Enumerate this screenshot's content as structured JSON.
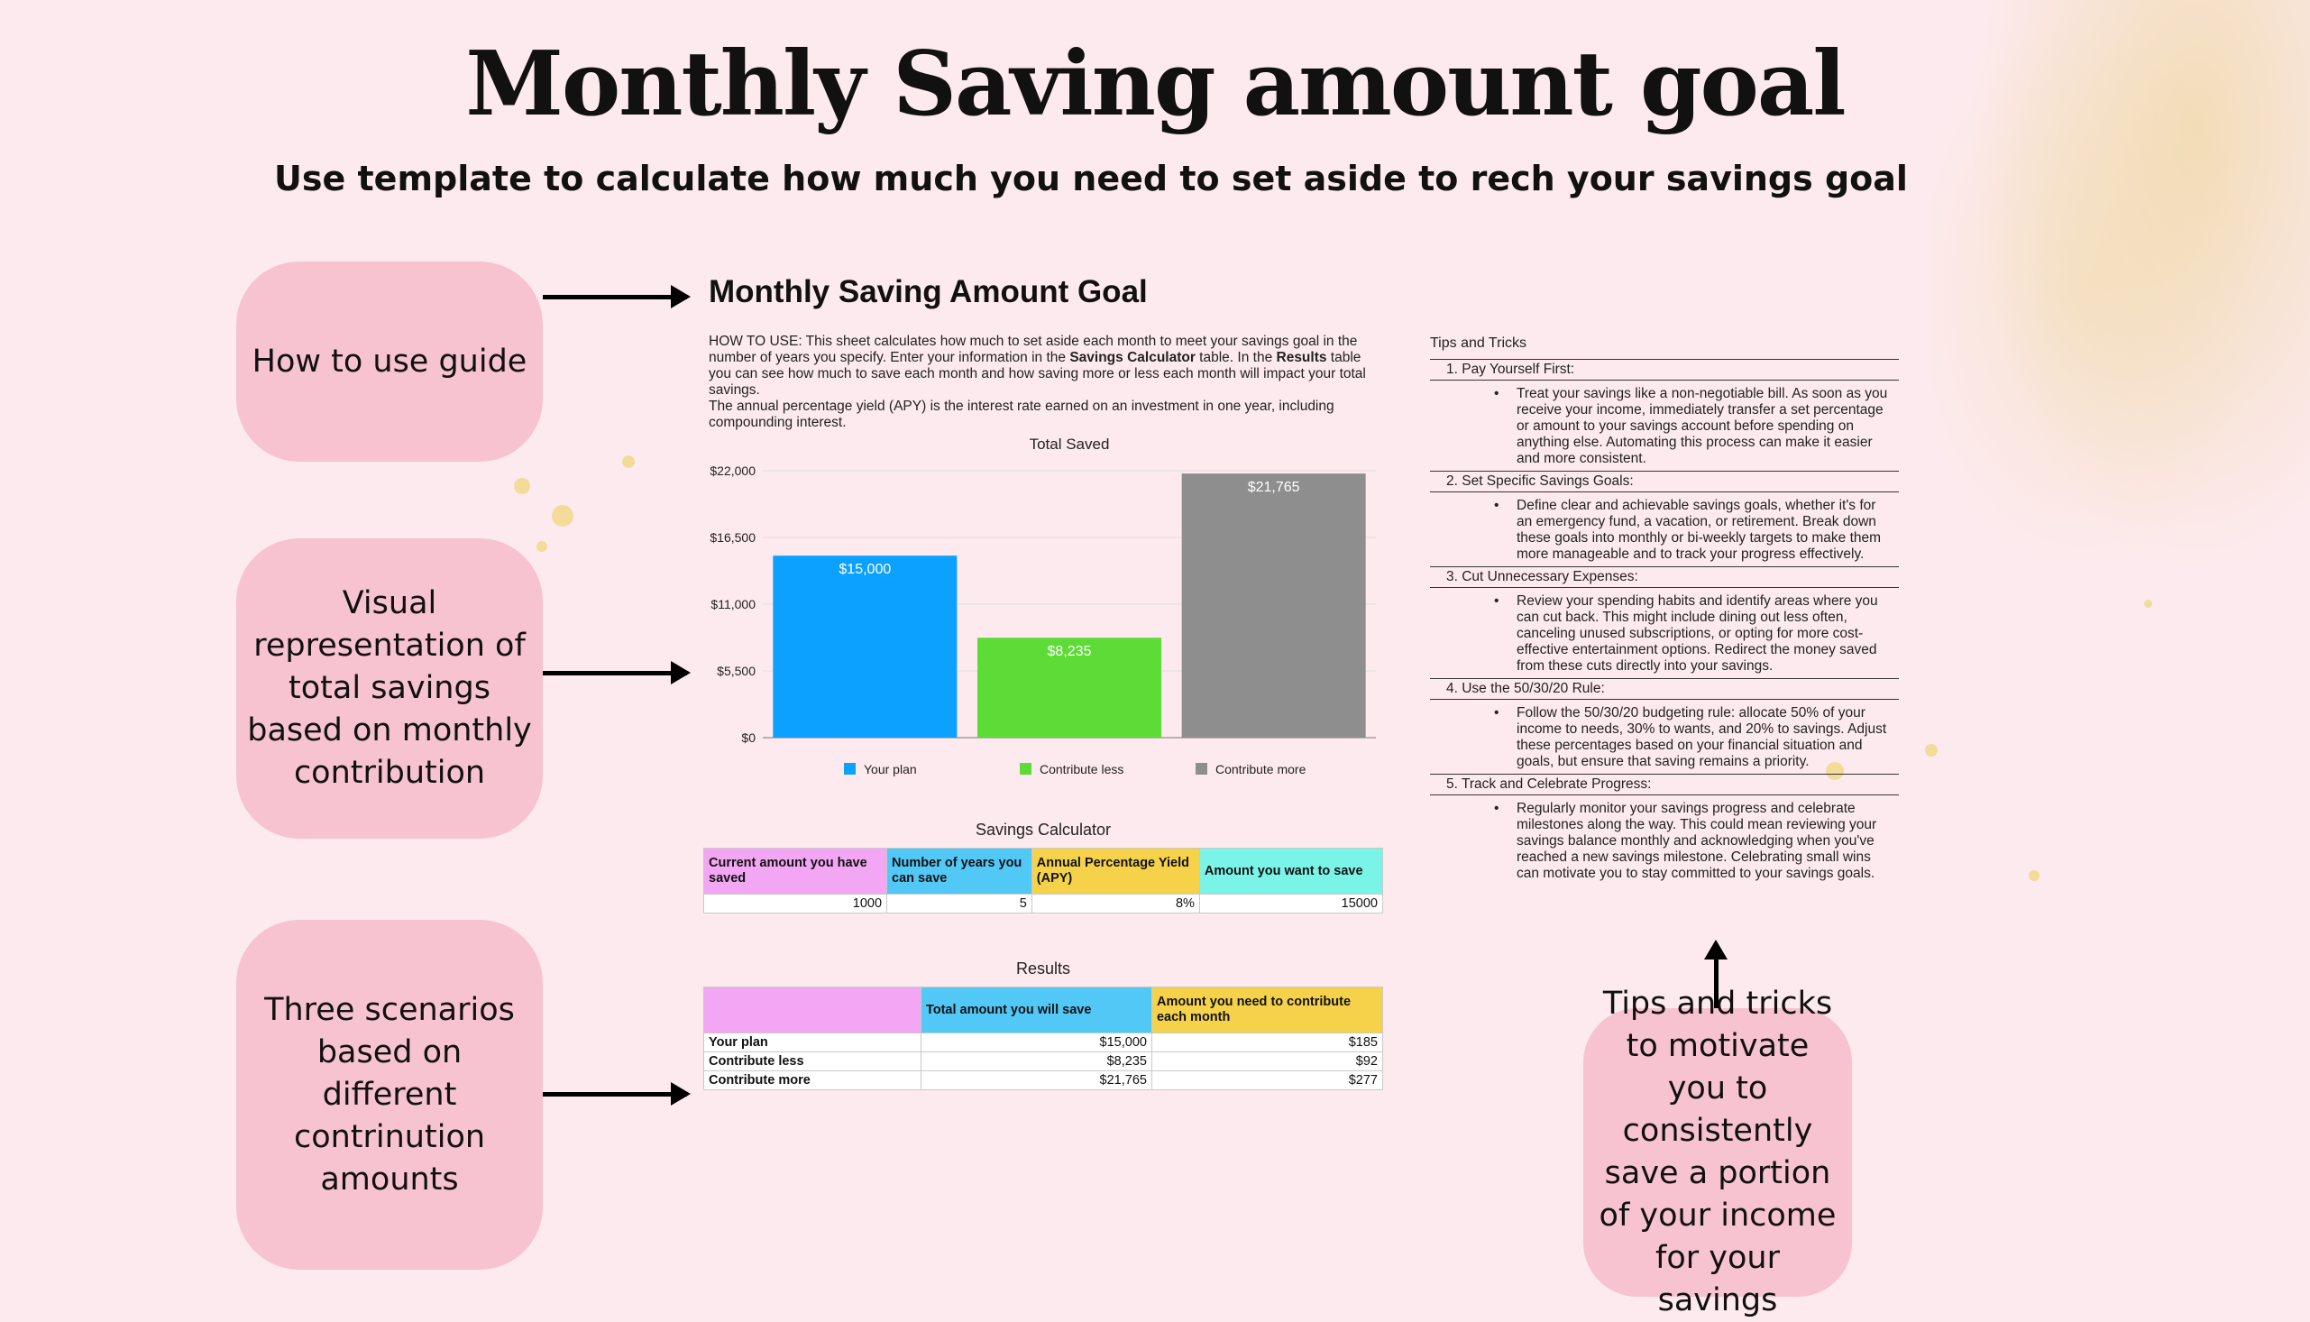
{
  "title": "Monthly Saving amount goal",
  "subtitle": "Use template to calculate how much you need to set aside to rech your savings goal",
  "bubbles": {
    "guide": "How to use guide",
    "visual": "Visual representation of total savings based on monthly contribution",
    "scenarios": "Three scenarios based on different contrinution amounts",
    "tips": "Tips and tricks to motivate you to consistently save a portion of your income for your savings"
  },
  "sheet": {
    "title": "Monthly Saving Amount Goal",
    "howto_1": "HOW TO USE: This sheet calculates how much to set aside each month to meet your savings goal in the number of years you specify. Enter your information in the ",
    "howto_bold1": "Savings Calculator",
    "howto_2": " table. In the ",
    "howto_bold2": "Results",
    "howto_3": " table you can see how much to save each month and how saving more or less each month will impact your total savings.",
    "howto_4": "The annual percentage yield (APY) is the interest rate earned on an investment in one year, including compounding interest."
  },
  "chart_data": {
    "type": "bar",
    "title": "Total Saved",
    "categories": [
      "Your plan",
      "Contribute less",
      "Contribute more"
    ],
    "values": [
      15000,
      8235,
      21765
    ],
    "value_labels": [
      "$15,000",
      "$8,235",
      "$21,765"
    ],
    "colors": [
      "#0da1ff",
      "#5ddb37",
      "#8e8e8e"
    ],
    "ylim": [
      0,
      22000
    ],
    "yticks": [
      0,
      5500,
      11000,
      16500,
      22000
    ],
    "ytick_labels": [
      "$0",
      "$5,500",
      "$11,000",
      "$16,500",
      "$22,000"
    ],
    "legend": [
      "Your plan",
      "Contribute less",
      "Contribute more"
    ],
    "legend_position": "bottom",
    "grid": true
  },
  "calculator": {
    "caption": "Savings Calculator",
    "headers": [
      "Current amount you have saved",
      "Number of years you can save",
      "Annual Percentage Yield (APY)",
      "Amount you want to save"
    ],
    "values": [
      "1000",
      "5",
      "8%",
      "15000"
    ],
    "header_colors": [
      "#f3a6f3",
      "#52c8f7",
      "#f6d24b",
      "#7bf4e8"
    ]
  },
  "results": {
    "caption": "Results",
    "headers": [
      "",
      "Total amount you will save",
      "Amount you need to contribute each month"
    ],
    "header_colors": [
      "#f3a6f3",
      "#52c8f7",
      "#f6d24b"
    ],
    "rows": [
      {
        "label": "Your plan",
        "total": "$15,000",
        "monthly": "$185"
      },
      {
        "label": "Contribute less",
        "total": "$8,235",
        "monthly": "$92"
      },
      {
        "label": "Contribute more",
        "total": "$21,765",
        "monthly": "$277"
      }
    ]
  },
  "tips": {
    "title": "Tips and Tricks",
    "items": [
      {
        "head": "1.   Pay Yourself First:",
        "body": "Treat your savings like a non-negotiable bill. As soon as you receive your income, immediately transfer a set percentage or amount to your savings account before spending on anything else. Automating this process can make it easier and more consistent."
      },
      {
        "head": "2.   Set Specific Savings Goals:",
        "body": "Define clear and achievable savings goals, whether it's for an emergency fund, a vacation, or retirement. Break down these goals into monthly or bi-weekly targets to make them more manageable and to track your progress effectively."
      },
      {
        "head": "3.   Cut Unnecessary Expenses:",
        "body": "Review your spending habits and identify areas where you can cut back. This might include dining out less often, canceling unused subscriptions, or opting for more cost-effective entertainment options. Redirect the money saved from these cuts directly into your savings."
      },
      {
        "head": "4.   Use the 50/30/20 Rule:",
        "body": "Follow the 50/30/20 budgeting rule: allocate 50% of your income to needs, 30% to wants, and 20% to savings. Adjust these percentages based on your financial situation and goals, but ensure that saving remains a priority."
      },
      {
        "head": "5.   Track and Celebrate Progress:",
        "body": "Regularly monitor your savings progress and celebrate milestones along the way. This could mean reviewing your savings balance monthly and acknowledging when you've reached a new savings milestone. Celebrating small wins can motivate you to stay committed to your savings goals."
      }
    ]
  }
}
